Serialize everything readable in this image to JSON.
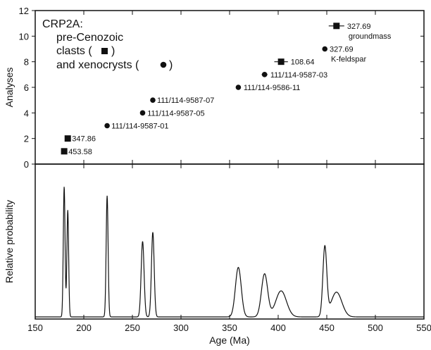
{
  "chart_data": {
    "type": "scatter",
    "x_axis": {
      "label": "Age (Ma)",
      "range": [
        150,
        550
      ],
      "ticks": [
        150,
        200,
        250,
        300,
        350,
        400,
        450,
        500,
        550
      ]
    },
    "top_panel": {
      "type": "scatter",
      "ylabel": "Analyses",
      "ylim": [
        0,
        12
      ],
      "yticks": [
        0,
        2,
        4,
        6,
        8,
        10,
        12
      ],
      "legend": {
        "title": "CRP2A:",
        "lines": [
          "pre-Cenozoic",
          "clasts (",
          ")",
          "and xenocrysts (",
          ")"
        ],
        "placement": "top-left"
      },
      "series": [
        {
          "name": "clasts",
          "marker": "square",
          "points": [
            {
              "x": 179.8,
              "y": 1,
              "err": 1.5,
              "label": "453.58"
            },
            {
              "x": 183.5,
              "y": 2,
              "err": 1.5,
              "label": "347.86"
            },
            {
              "x": 403.0,
              "y": 8,
              "err": 7.0,
              "label": "108.64"
            },
            {
              "x": 460.0,
              "y": 10.8,
              "err": 8.0,
              "label": "327.69",
              "sublabel": "groundmass"
            }
          ]
        },
        {
          "name": "xenocrysts",
          "marker": "circle",
          "points": [
            {
              "x": 224.0,
              "y": 3,
              "err": 1.5,
              "label": "111/114-9587-01"
            },
            {
              "x": 260.5,
              "y": 4,
              "err": 2.0,
              "label": "111/114-9587-05"
            },
            {
              "x": 271.0,
              "y": 5,
              "err": 1.5,
              "label": "111/114-9587-07"
            },
            {
              "x": 359.0,
              "y": 6,
              "err": 2.5,
              "label": "111/114-9586-11"
            },
            {
              "x": 386.0,
              "y": 7,
              "err": 3.0,
              "label": "111/114-9587-03"
            },
            {
              "x": 448.0,
              "y": 9,
              "err": 2.0,
              "label": "327.69",
              "sublabel": "K-feldspar"
            }
          ]
        }
      ]
    },
    "bottom_panel": {
      "type": "line",
      "ylabel": "Relative probability",
      "peaks": [
        {
          "mu": 179.8,
          "sigma": 0.9,
          "height": 1.0
        },
        {
          "mu": 183.5,
          "sigma": 0.9,
          "height": 0.82
        },
        {
          "mu": 224.0,
          "sigma": 1.0,
          "height": 0.93
        },
        {
          "mu": 260.5,
          "sigma": 1.5,
          "height": 0.58
        },
        {
          "mu": 271.0,
          "sigma": 1.4,
          "height": 0.65
        },
        {
          "mu": 359.0,
          "sigma": 3.0,
          "height": 0.38
        },
        {
          "mu": 386.0,
          "sigma": 3.2,
          "height": 0.33
        },
        {
          "mu": 403.0,
          "sigma": 5.5,
          "height": 0.2
        },
        {
          "mu": 448.0,
          "sigma": 2.0,
          "height": 0.53
        },
        {
          "mu": 460.0,
          "sigma": 5.5,
          "height": 0.19
        }
      ]
    }
  }
}
